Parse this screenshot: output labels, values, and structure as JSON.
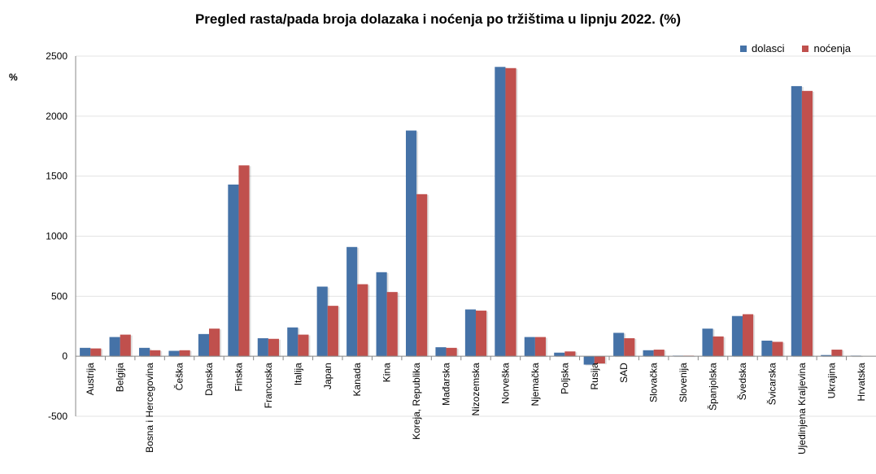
{
  "chart_data": {
    "type": "bar",
    "title": "Pregled rasta/pada broja dolazaka i noćenja po tržištima u lipnju 2022. (%)",
    "ylabel": "%",
    "xlabel": "",
    "ylim": [
      -500,
      2500
    ],
    "yticks": [
      -500,
      0,
      500,
      1000,
      1500,
      2000,
      2500
    ],
    "grid": true,
    "legend_position": "top-right",
    "categories": [
      "Austrija",
      "Belgija",
      "Bosna i Hercegovina",
      "Češka",
      "Danska",
      "Finska",
      "Francuska",
      "Italija",
      "Japan",
      "Kanada",
      "Kina",
      "Koreja, Republika",
      "Mađarska",
      "Nizozemska",
      "Norveška",
      "Njemačka",
      "Poljska",
      "Rusija",
      "SAD",
      "Slovačka",
      "Slovenija",
      "Španjolska",
      "Švedska",
      "Švicarska",
      "Ujedinjena Kraljevina",
      "Ukrajina",
      "Hrvatska"
    ],
    "series": [
      {
        "name": "dolasci",
        "color": "#4572A7",
        "values": [
          70,
          160,
          70,
          45,
          185,
          1430,
          150,
          240,
          580,
          910,
          700,
          1880,
          75,
          390,
          2410,
          160,
          30,
          -70,
          195,
          50,
          5,
          230,
          335,
          130,
          2250,
          10,
          5
        ]
      },
      {
        "name": "noćenja",
        "color": "#C0504D",
        "values": [
          65,
          180,
          50,
          50,
          230,
          1590,
          145,
          180,
          420,
          600,
          535,
          1350,
          70,
          380,
          2400,
          160,
          40,
          -60,
          150,
          55,
          5,
          165,
          350,
          120,
          2210,
          55,
          0
        ]
      }
    ]
  }
}
